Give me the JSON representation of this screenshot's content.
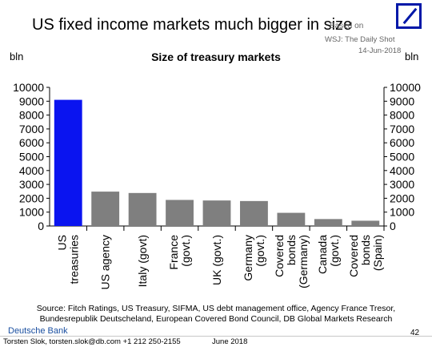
{
  "header": {
    "headline": "US fixed income markets much bigger in size",
    "based_on": "Based on",
    "source_tag": "WSJ: The Daily Shot",
    "date": "14-Jun-2018"
  },
  "logo": {
    "icon": "deutsche-bank-logo",
    "color": "#0018a8"
  },
  "chart_data": {
    "type": "bar",
    "title": "Size of treasury markets",
    "ylabel_left": "bln",
    "ylabel_right": "bln",
    "xlabel": "",
    "ylim": [
      0,
      10000
    ],
    "yticks": [
      0,
      1000,
      2000,
      3000,
      4000,
      5000,
      6000,
      7000,
      8000,
      9000,
      10000
    ],
    "categories": [
      [
        "US",
        "treasuries"
      ],
      [
        "US agency"
      ],
      [
        "Italy (govt)"
      ],
      [
        "France",
        "(govt.)"
      ],
      [
        "UK (govt.)"
      ],
      [
        "Germany",
        "(govt.)"
      ],
      [
        "Covered",
        "bonds",
        "(Germany)"
      ],
      [
        "Canada",
        "(govt.)"
      ],
      [
        "Covered",
        "bonds",
        "(Spain)"
      ]
    ],
    "values": [
      9100,
      2480,
      2380,
      1880,
      1840,
      1800,
      950,
      500,
      380
    ],
    "colors": [
      "#0a14f0",
      "#7f7f7f",
      "#7f7f7f",
      "#7f7f7f",
      "#7f7f7f",
      "#7f7f7f",
      "#7f7f7f",
      "#7f7f7f",
      "#7f7f7f"
    ],
    "grid": false
  },
  "source": {
    "line1": "Source: Fitch Ratings, US Treasury,  SIFMA, US debt management office, Agency France Tresor,",
    "line2": "Bundesrepublik Deutscheland, European Covered Bond Council, DB Global Markets Research"
  },
  "footer": {
    "bank_name": "Deutsche Bank",
    "author": "Torsten Slok, torsten.slok@db.com +1 212 250-2155",
    "month": "June 2018",
    "page": "42"
  }
}
